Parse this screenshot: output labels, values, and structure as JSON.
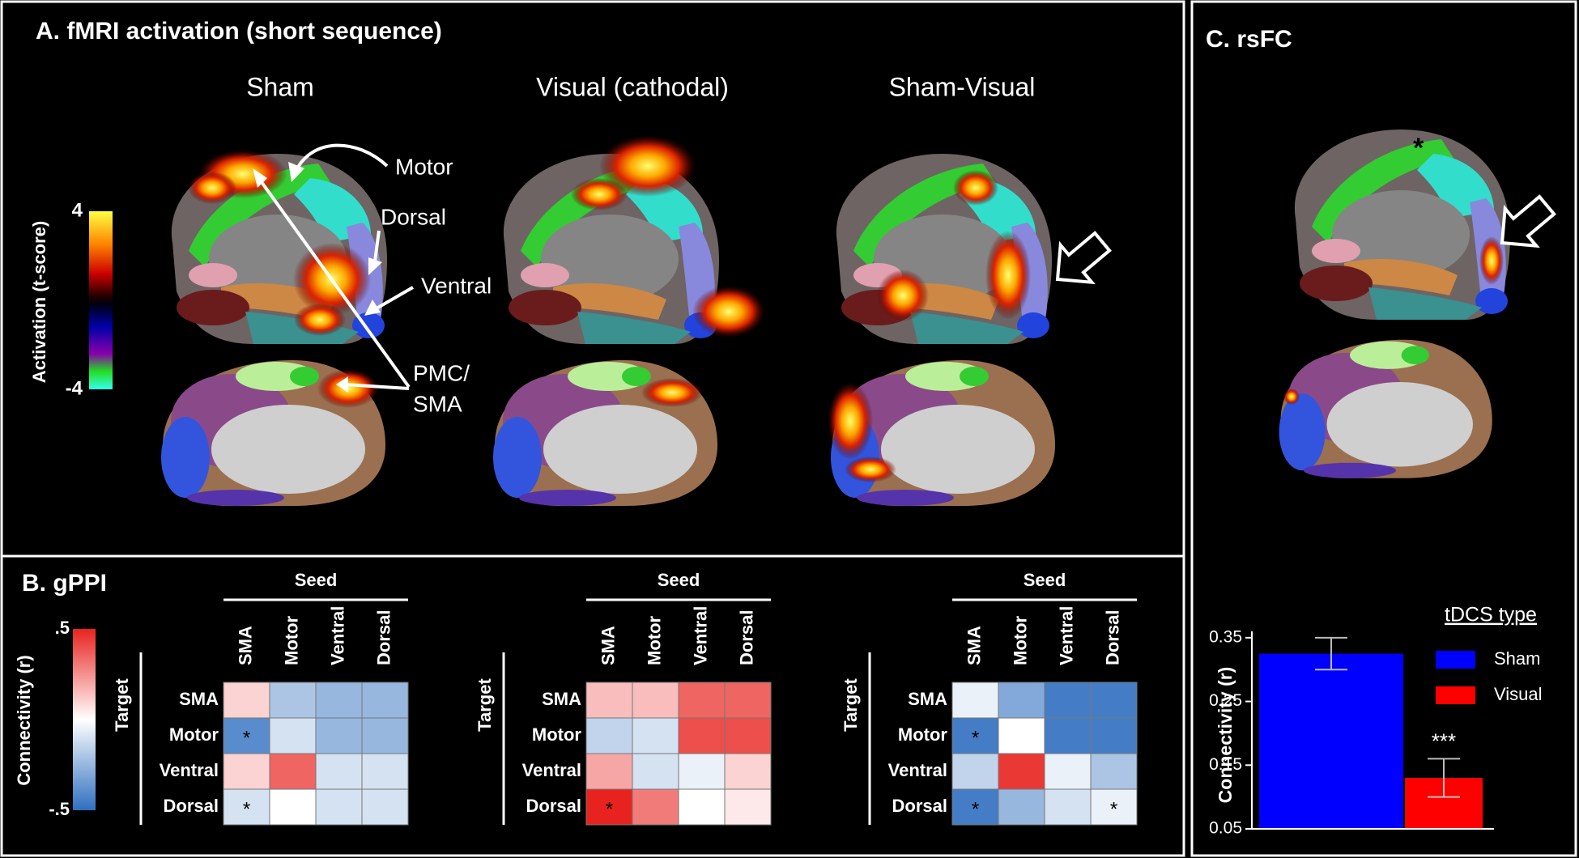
{
  "panel_a": {
    "title": "A.  fMRI  activation (short sequence)",
    "conditions": [
      "Sham",
      "Visual (cathodal)",
      "Sham-Visual"
    ],
    "labels": {
      "motor": "Motor",
      "dorsal": "Dorsal",
      "ventral": "Ventral",
      "pmc": "PMC/",
      "sma": "SMA"
    },
    "colorbar": {
      "label": "Activation (t-score)",
      "zlim": [
        -4,
        4
      ],
      "ticks": [
        4,
        -4
      ]
    }
  },
  "panel_c": {
    "title": "C.  rsFC",
    "annotation": "*"
  },
  "chart_data": [
    {
      "type": "heatmap",
      "title": "B.  gPPI",
      "x_label": "Seed",
      "y_label": "Target",
      "categories": [
        "SMA",
        "Motor",
        "Ventral",
        "Dorsal"
      ],
      "colorbar_label": "Connectivity (r)",
      "zlim": [
        -0.5,
        0.5
      ],
      "zticks": [
        {
          "value": 0.5,
          "label": ".5"
        },
        {
          "value": -0.5,
          "label": "-.5"
        }
      ],
      "colors": [
        "#2f6fbf",
        "#ffffff",
        "#e8231f"
      ],
      "matrices": [
        [
          [
            0.1,
            -0.2,
            -0.25,
            -0.25
          ],
          [
            -0.4,
            -0.1,
            -0.25,
            -0.25
          ],
          [
            0.1,
            0.35,
            -0.1,
            -0.1
          ],
          [
            -0.1,
            0.0,
            -0.1,
            -0.1
          ]
        ],
        [
          [
            0.15,
            0.15,
            0.35,
            0.35
          ],
          [
            -0.15,
            -0.1,
            0.4,
            0.4
          ],
          [
            0.2,
            -0.1,
            -0.05,
            0.1
          ],
          [
            0.5,
            0.3,
            0.0,
            0.05
          ]
        ],
        [
          [
            -0.05,
            -0.3,
            -0.45,
            -0.45
          ],
          [
            -0.45,
            0.0,
            -0.45,
            -0.45
          ],
          [
            -0.15,
            0.45,
            -0.05,
            -0.2
          ],
          [
            -0.45,
            -0.25,
            -0.1,
            -0.05
          ]
        ]
      ],
      "annotations": [
        [
          [
            null,
            null,
            null,
            null
          ],
          [
            "*",
            null,
            null,
            null
          ],
          [
            null,
            null,
            null,
            null
          ],
          [
            "*",
            null,
            null,
            null
          ]
        ],
        [
          [
            null,
            null,
            null,
            null
          ],
          [
            null,
            null,
            null,
            null
          ],
          [
            null,
            null,
            null,
            null
          ],
          [
            "*",
            null,
            null,
            null
          ]
        ],
        [
          [
            null,
            null,
            null,
            null
          ],
          [
            "*",
            null,
            null,
            null
          ],
          [
            null,
            null,
            null,
            null
          ],
          [
            "*",
            null,
            null,
            "*"
          ]
        ]
      ]
    },
    {
      "type": "bar",
      "ylabel": "Connectivity (r)",
      "ylim": [
        0.05,
        0.36
      ],
      "yticks": [
        0.05,
        0.15,
        0.25,
        0.35
      ],
      "legend_title": "tDCS type",
      "series": [
        {
          "name": "Sham",
          "color": "#0000ff",
          "values": [
            0.325
          ],
          "errors": [
            0.025
          ]
        },
        {
          "name": "Visual",
          "color": "#ff0000",
          "values": [
            0.13
          ],
          "errors": [
            0.03
          ],
          "annotation": "***"
        }
      ]
    }
  ]
}
